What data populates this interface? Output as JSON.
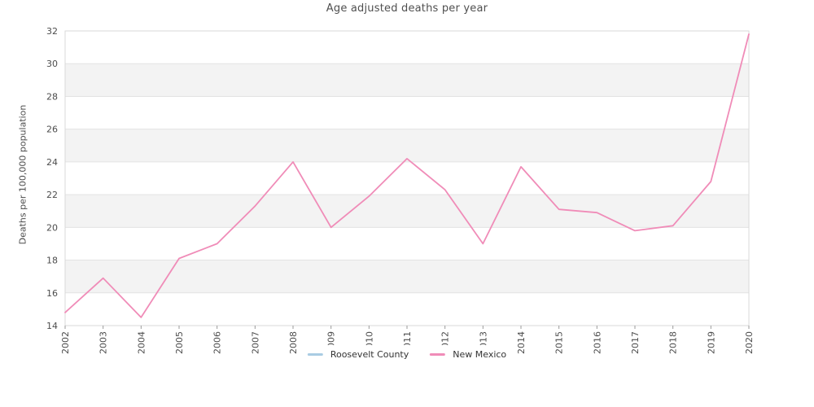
{
  "chart_data": {
    "type": "line",
    "title": "Age adjusted deaths per year",
    "xlabel": "",
    "ylabel": "Deaths per 100,000 population",
    "x": [
      "2002",
      "2003",
      "2004",
      "2005",
      "2006",
      "2007",
      "2008",
      "2009",
      "2010",
      "2011",
      "2012",
      "2013",
      "2014",
      "2015",
      "2016",
      "2017",
      "2018",
      "2019",
      "2020"
    ],
    "series": [
      {
        "name": "Roosevelt County",
        "color": "#a9cce3",
        "values": []
      },
      {
        "name": "New Mexico",
        "color": "#f08cb8",
        "values": [
          14.8,
          16.9,
          14.5,
          18.1,
          19.0,
          21.3,
          24.0,
          20.0,
          21.9,
          24.2,
          22.3,
          19.0,
          23.7,
          21.1,
          20.9,
          19.8,
          20.1,
          22.8,
          31.8
        ]
      }
    ],
    "ylim": [
      14,
      32
    ],
    "yticks": [
      14,
      16,
      18,
      20,
      22,
      24,
      26,
      28,
      30,
      32
    ],
    "grid": true,
    "band_fill_ranges": [
      [
        16,
        18
      ],
      [
        20,
        22
      ],
      [
        24,
        26
      ],
      [
        28,
        30
      ]
    ],
    "legend_position": "bottom-center"
  },
  "style": {
    "band_color": "#f3f3f3",
    "gridline_color": "#e3e3e3",
    "border_color": "#d9d9d9",
    "tick_color": "#9a9a9a",
    "tick_label_color": "#4d4d4d",
    "line_width": 1.8
  }
}
